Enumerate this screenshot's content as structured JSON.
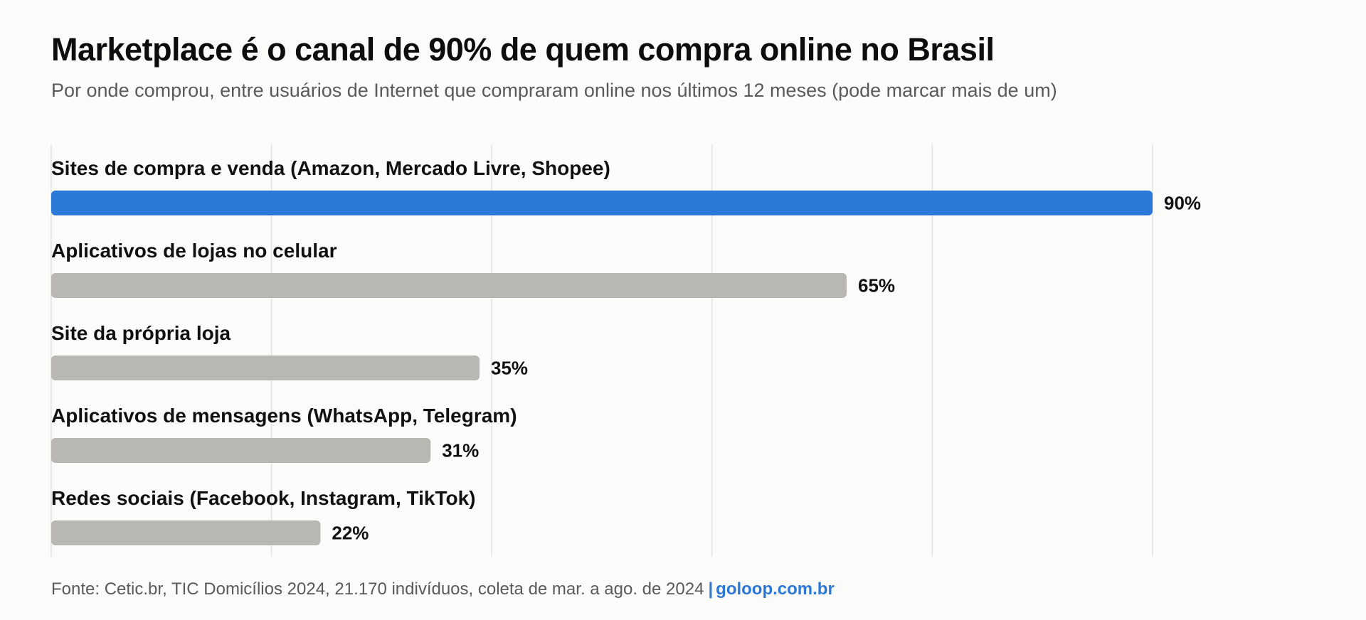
{
  "header": {
    "title": "Marketplace é o canal de 90% de quem compra online no Brasil",
    "subtitle": "Por onde comprou, entre usuários de Internet que compraram online nos últimos 12 meses (pode marcar mais de um)"
  },
  "footer": {
    "source": "Fonte: Cetic.br, TIC Domicílios 2024, 21.170 indivíduos, coleta de mar. a ago. de 2024",
    "separator": "|",
    "brand": "goloop.com.br"
  },
  "chart_data": {
    "type": "bar",
    "orientation": "horizontal",
    "title": "Marketplace é o canal de 90% de quem compra online no Brasil",
    "subtitle": "Por onde comprou, entre usuários de Internet que compraram online nos últimos 12 meses (pode marcar mais de um)",
    "xlabel": "",
    "ylabel": "",
    "xlim": [
      0,
      90
    ],
    "gridlines": [
      0,
      18,
      36,
      54,
      72,
      90
    ],
    "grid": true,
    "legend": "none",
    "unit": "%",
    "categories": [
      "Sites de compra e venda (Amazon, Mercado Livre, Shopee)",
      "Aplicativos de lojas no celular",
      "Site da própria loja",
      "Aplicativos de mensagens (WhatsApp, Telegram)",
      "Redes sociais (Facebook, Instagram, TikTok)"
    ],
    "values": [
      90,
      65,
      35,
      31,
      22
    ],
    "data_labels": [
      "90%",
      "65%",
      "35%",
      "31%",
      "22%"
    ],
    "highlight_index": 0,
    "colors": {
      "highlight": "#2b78d6",
      "default": "#b8b7b1",
      "grid": "#e2e2e0"
    }
  }
}
